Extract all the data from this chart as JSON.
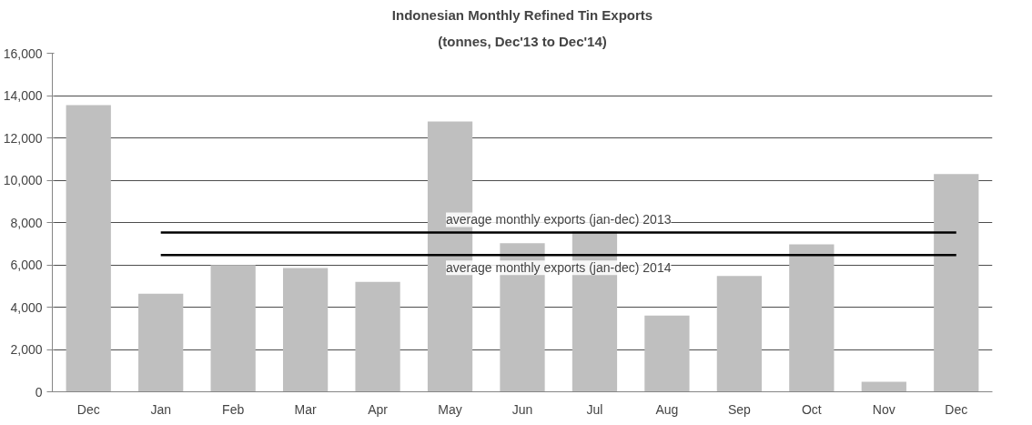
{
  "chart_data": {
    "type": "bar",
    "title": "Indonesian Monthly Refined Tin Exports",
    "subtitle": "(tonnes, Dec'13 to Dec'14)",
    "categories": [
      "Dec",
      "Jan",
      "Feb",
      "Mar",
      "Apr",
      "May",
      "Jun",
      "Jul",
      "Aug",
      "Sep",
      "Oct",
      "Nov",
      "Dec"
    ],
    "series": [
      {
        "color": "#bfbfbf",
        "values": [
          13550,
          4630,
          5990,
          5850,
          5190,
          12770,
          7020,
          7580,
          3600,
          5470,
          6970,
          470,
          10290
        ]
      },
      {
        "type": "line",
        "name": "average monthly exports (jan-dec) 2013",
        "color": "#000000",
        "values": [
          null,
          7530,
          7530,
          7530,
          7530,
          7530,
          7530,
          7530,
          7530,
          7530,
          7530,
          7530,
          7530
        ]
      },
      {
        "type": "line",
        "name": "average monthly exports (jan-dec) 2014",
        "color": "#000000",
        "values": [
          null,
          6460,
          6460,
          6460,
          6460,
          6460,
          6460,
          6460,
          6460,
          6460,
          6460,
          6460,
          6460
        ]
      }
    ],
    "ylim": [
      0,
      16000
    ],
    "yticks": [
      {
        "value": 0,
        "label": "0"
      },
      {
        "value": 2000,
        "label": "2,000"
      },
      {
        "value": 4000,
        "label": "4,000"
      },
      {
        "value": 6000,
        "label": "6,000"
      },
      {
        "value": 8000,
        "label": "8,000"
      },
      {
        "value": 10000,
        "label": "10,000"
      },
      {
        "value": 12000,
        "label": "12,000"
      },
      {
        "value": 14000,
        "label": "14,000"
      },
      {
        "value": 16000,
        "label": "16,000"
      }
    ],
    "grid": "y"
  }
}
